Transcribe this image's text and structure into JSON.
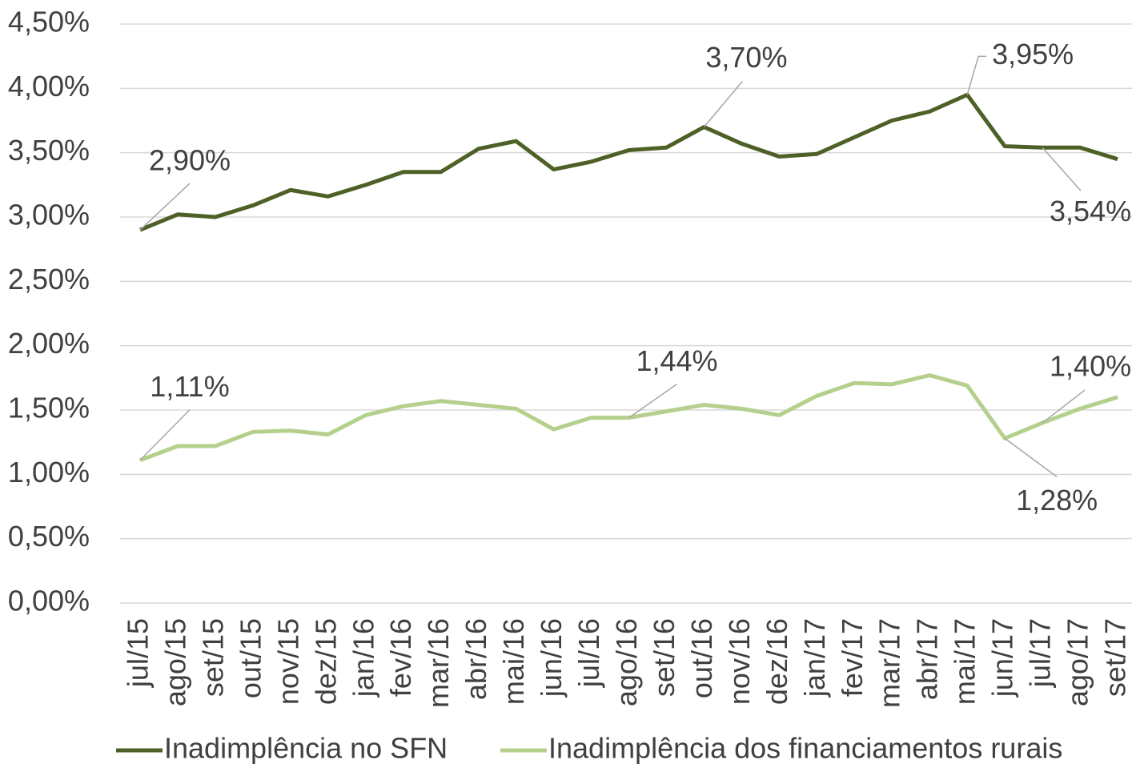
{
  "chart_data": {
    "type": "line",
    "categories": [
      "jul/15",
      "ago/15",
      "set/15",
      "out/15",
      "nov/15",
      "dez/15",
      "jan/16",
      "fev/16",
      "mar/16",
      "abr/16",
      "mai/16",
      "jun/16",
      "jul/16",
      "ago/16",
      "set/16",
      "out/16",
      "nov/16",
      "dez/16",
      "jan/17",
      "fev/17",
      "mar/17",
      "abr/17",
      "mai/17",
      "jun/17",
      "jul/17",
      "ago/17",
      "set/17"
    ],
    "series": [
      {
        "name": "Inadimplência no SFN",
        "color": "#4d6127",
        "values": [
          2.9,
          3.02,
          3.0,
          3.09,
          3.21,
          3.16,
          3.25,
          3.35,
          3.35,
          3.53,
          3.59,
          3.37,
          3.43,
          3.52,
          3.54,
          3.7,
          3.57,
          3.47,
          3.49,
          3.62,
          3.75,
          3.82,
          3.95,
          3.55,
          3.54,
          3.54,
          3.45
        ],
        "value_labels": [
          "2,90%",
          null,
          null,
          null,
          null,
          null,
          null,
          null,
          null,
          null,
          null,
          null,
          null,
          null,
          null,
          "3,70%",
          null,
          null,
          null,
          null,
          null,
          null,
          "3,95%",
          null,
          "3,54%",
          null,
          null
        ]
      },
      {
        "name": "Inadimplência dos financiamentos rurais",
        "color": "#b5d08c",
        "values": [
          1.11,
          1.22,
          1.22,
          1.33,
          1.34,
          1.31,
          1.46,
          1.53,
          1.57,
          1.54,
          1.51,
          1.35,
          1.44,
          1.44,
          1.49,
          1.54,
          1.51,
          1.46,
          1.61,
          1.71,
          1.7,
          1.77,
          1.69,
          1.28,
          1.4,
          1.51,
          1.6
        ],
        "value_labels": [
          "1,11%",
          null,
          null,
          null,
          null,
          null,
          null,
          null,
          null,
          null,
          null,
          null,
          null,
          "1,44%",
          null,
          null,
          null,
          null,
          null,
          null,
          null,
          null,
          null,
          "1,28%",
          "1,40%",
          null,
          null
        ]
      }
    ],
    "ylim": [
      0,
      4.5
    ],
    "yticks": [
      {
        "value": 0,
        "label": "0,00%"
      },
      {
        "value": 0.5,
        "label": "0,50%"
      },
      {
        "value": 1,
        "label": "1,00%"
      },
      {
        "value": 1.5,
        "label": "1,50%"
      },
      {
        "value": 2,
        "label": "2,00%"
      },
      {
        "value": 2.5,
        "label": "2,50%"
      },
      {
        "value": 3,
        "label": "3,00%"
      },
      {
        "value": 3.5,
        "label": "3,50%"
      },
      {
        "value": 4,
        "label": "4,00%"
      },
      {
        "value": 4.5,
        "label": "4,50%"
      }
    ],
    "grid": true,
    "legend": "bottom"
  }
}
